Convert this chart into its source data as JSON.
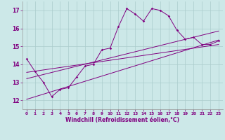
{
  "title": "",
  "xlabel": "Windchill (Refroidissement éolien,°C)",
  "bg_color": "#cce8e8",
  "line_color": "#800080",
  "xlim": [
    -0.5,
    23.5
  ],
  "ylim": [
    11.5,
    17.5
  ],
  "xticks": [
    0,
    1,
    2,
    3,
    4,
    5,
    6,
    7,
    8,
    9,
    10,
    11,
    12,
    13,
    14,
    15,
    16,
    17,
    18,
    19,
    20,
    21,
    22,
    23
  ],
  "yticks": [
    12,
    13,
    14,
    15,
    16,
    17
  ],
  "scatter_x": [
    0,
    1,
    2,
    3,
    4,
    5,
    6,
    7,
    8,
    9,
    10,
    11,
    12,
    13,
    14,
    15,
    16,
    17,
    18,
    19,
    20,
    21,
    22,
    23
  ],
  "scatter_y": [
    14.3,
    13.6,
    13.0,
    12.2,
    12.6,
    12.7,
    13.3,
    13.9,
    14.0,
    14.8,
    14.9,
    16.1,
    17.1,
    16.8,
    16.4,
    17.1,
    17.0,
    16.7,
    15.9,
    15.4,
    15.5,
    15.1,
    15.1,
    15.3
  ],
  "line1_x": [
    0,
    23
  ],
  "line1_y": [
    13.2,
    15.85
  ],
  "line2_x": [
    0,
    23
  ],
  "line2_y": [
    12.05,
    15.35
  ],
  "line3_x": [
    0,
    23
  ],
  "line3_y": [
    13.55,
    15.1
  ]
}
